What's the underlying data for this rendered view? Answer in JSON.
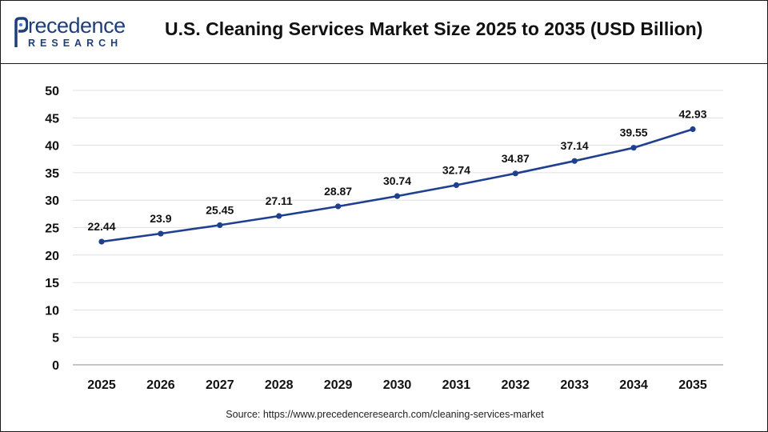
{
  "header": {
    "logo_top": "recedence",
    "logo_bottom": "RESEARCH",
    "title": "U.S. Cleaning Services Market Size 2025 to 2035 (USD Billion)"
  },
  "footer": {
    "source": "Source: https://www.precedenceresearch.com/cleaning-services-market"
  },
  "colors": {
    "line": "#1f3f8f",
    "brand": "#1f3f7a"
  },
  "chart_data": {
    "type": "line",
    "title": "U.S. Cleaning Services Market Size 2025 to 2035 (USD Billion)",
    "categories": [
      "2025",
      "2026",
      "2027",
      "2028",
      "2029",
      "2030",
      "2031",
      "2032",
      "2033",
      "2034",
      "2035"
    ],
    "values": [
      22.44,
      23.9,
      25.45,
      27.11,
      28.87,
      30.74,
      32.74,
      34.87,
      37.14,
      39.55,
      42.93
    ],
    "data_labels": [
      "22.44",
      "23.9",
      "25.45",
      "27.11",
      "28.87",
      "30.74",
      "32.74",
      "34.87",
      "37.14",
      "39.55",
      "42.93"
    ],
    "yticks": [
      "0",
      "5",
      "10",
      "15",
      "20",
      "25",
      "30",
      "35",
      "40",
      "45",
      "50"
    ],
    "ylim": [
      0,
      50
    ],
    "xlabel": "",
    "ylabel": "",
    "grid": true,
    "legend": "none"
  }
}
